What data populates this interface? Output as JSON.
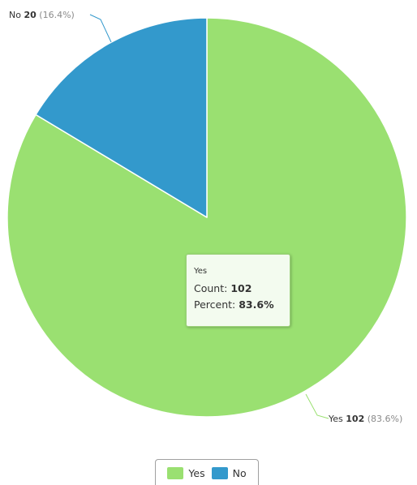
{
  "chart_data": {
    "type": "pie",
    "title": "",
    "colors": {
      "Yes": "#9ae071",
      "No": "#3399cc"
    },
    "slices": [
      {
        "name": "Yes",
        "value": 102,
        "percent": "83.6%",
        "color": "#9ae071"
      },
      {
        "name": "No",
        "value": 20,
        "percent": "16.4%",
        "color": "#3399cc"
      }
    ],
    "labels": [
      {
        "name": "Yes",
        "value": "102",
        "percent": "(83.6%)"
      },
      {
        "name": "No",
        "value": "20",
        "percent": "(16.4%)"
      }
    ],
    "legend": {
      "position": "bottom",
      "items": [
        {
          "label": "Yes",
          "color": "#9ae071"
        },
        {
          "label": "No",
          "color": "#3399cc"
        }
      ]
    },
    "tooltip": {
      "title": "Yes",
      "count_label": "Count:",
      "count_value": "102",
      "percent_label": "Percent:",
      "percent_value": "83.6%"
    }
  }
}
